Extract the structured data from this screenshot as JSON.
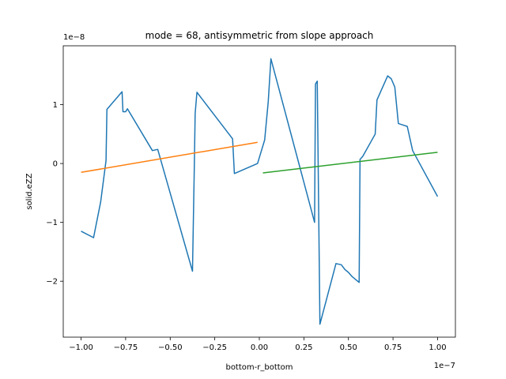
{
  "chart_data": {
    "type": "line",
    "title": "mode = 68, antisymmetric from slope approach",
    "xlabel": "bottom-r_bottom",
    "ylabel": "solid.eZZ",
    "x_offset_label": "1e−7",
    "y_offset_label": "1e−8",
    "xlim": [
      -1.1,
      1.1
    ],
    "ylim": [
      -2.95,
      2.0
    ],
    "x_ticks": [
      -1.0,
      -0.75,
      -0.5,
      -0.25,
      0.0,
      0.25,
      0.5,
      0.75,
      1.0
    ],
    "x_tick_labels": [
      "−1.00",
      "−0.75",
      "−0.50",
      "−0.25",
      "0.00",
      "0.25",
      "0.50",
      "0.75",
      "1.00"
    ],
    "y_ticks": [
      -2,
      -1,
      0,
      1
    ],
    "y_tick_labels": [
      "−2",
      "−1",
      "0",
      "1"
    ],
    "grid": false,
    "legend": "none",
    "series": [
      {
        "color": "#1f77b4",
        "points": [
          [
            -1.0,
            -1.15
          ],
          [
            -0.93,
            -1.26
          ],
          [
            -0.89,
            -0.65
          ],
          [
            -0.86,
            0.05
          ],
          [
            -0.855,
            0.92
          ],
          [
            -0.77,
            1.22
          ],
          [
            -0.765,
            0.88
          ],
          [
            -0.75,
            0.88
          ],
          [
            -0.74,
            0.93
          ],
          [
            -0.6,
            0.22
          ],
          [
            -0.57,
            0.24
          ],
          [
            -0.375,
            -1.83
          ],
          [
            -0.365,
            -0.1
          ],
          [
            -0.36,
            0.85
          ],
          [
            -0.35,
            1.21
          ],
          [
            -0.15,
            0.42
          ],
          [
            -0.14,
            -0.17
          ],
          [
            -0.01,
            0.0
          ],
          [
            0.03,
            0.4
          ],
          [
            0.05,
            1.05
          ],
          [
            0.065,
            1.78
          ],
          [
            0.31,
            -1.0
          ],
          [
            0.315,
            1.35
          ],
          [
            0.325,
            1.4
          ],
          [
            0.34,
            -2.73
          ],
          [
            0.43,
            -1.7
          ],
          [
            0.46,
            -1.72
          ],
          [
            0.48,
            -1.8
          ],
          [
            0.5,
            -1.85
          ],
          [
            0.52,
            -1.92
          ],
          [
            0.56,
            -2.02
          ],
          [
            0.565,
            0.07
          ],
          [
            0.58,
            0.12
          ],
          [
            0.65,
            0.5
          ],
          [
            0.66,
            1.08
          ],
          [
            0.72,
            1.49
          ],
          [
            0.74,
            1.44
          ],
          [
            0.76,
            1.3
          ],
          [
            0.78,
            0.68
          ],
          [
            0.83,
            0.63
          ],
          [
            0.86,
            0.22
          ],
          [
            1.0,
            -0.56
          ]
        ]
      },
      {
        "color": "#ff7f0e",
        "points": [
          [
            -1.0,
            -0.15
          ],
          [
            -0.01,
            0.36
          ]
        ]
      },
      {
        "color": "#2ca02c",
        "points": [
          [
            0.02,
            -0.16
          ],
          [
            1.0,
            0.19
          ]
        ]
      }
    ]
  }
}
